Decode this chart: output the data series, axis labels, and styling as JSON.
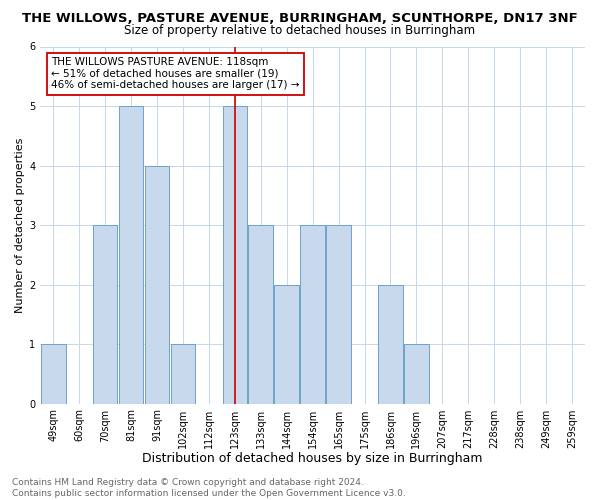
{
  "title": "THE WILLOWS, PASTURE AVENUE, BURRINGHAM, SCUNTHORPE, DN17 3NF",
  "subtitle": "Size of property relative to detached houses in Burringham",
  "xlabel": "Distribution of detached houses by size in Burringham",
  "ylabel": "Number of detached properties",
  "categories": [
    "49sqm",
    "60sqm",
    "70sqm",
    "81sqm",
    "91sqm",
    "102sqm",
    "112sqm",
    "123sqm",
    "133sqm",
    "144sqm",
    "154sqm",
    "165sqm",
    "175sqm",
    "186sqm",
    "196sqm",
    "207sqm",
    "217sqm",
    "228sqm",
    "238sqm",
    "249sqm",
    "259sqm"
  ],
  "values": [
    1,
    0,
    3,
    5,
    4,
    1,
    0,
    5,
    3,
    2,
    3,
    3,
    0,
    2,
    1,
    0,
    0,
    0,
    0,
    0,
    0
  ],
  "bar_color": "#c8d8ed",
  "bar_edge_color": "#6ba3c8",
  "ylim": [
    0,
    6
  ],
  "yticks": [
    0,
    1,
    2,
    3,
    4,
    5,
    6
  ],
  "property_line_x": 7.0,
  "property_line_color": "#cc0000",
  "annotation_title": "THE WILLOWS PASTURE AVENUE: 118sqm",
  "annotation_line1": "← 51% of detached houses are smaller (19)",
  "annotation_line2": "46% of semi-detached houses are larger (17) →",
  "annotation_box_color": "#ffffff",
  "annotation_box_edge": "#cc0000",
  "footer_line1": "Contains HM Land Registry data © Crown copyright and database right 2024.",
  "footer_line2": "Contains public sector information licensed under the Open Government Licence v3.0.",
  "background_color": "#ffffff",
  "grid_color": "#c5d8ea",
  "title_fontsize": 9.5,
  "subtitle_fontsize": 8.5,
  "xlabel_fontsize": 9,
  "ylabel_fontsize": 8,
  "tick_fontsize": 7,
  "footer_fontsize": 6.5,
  "annotation_fontsize": 7.5
}
